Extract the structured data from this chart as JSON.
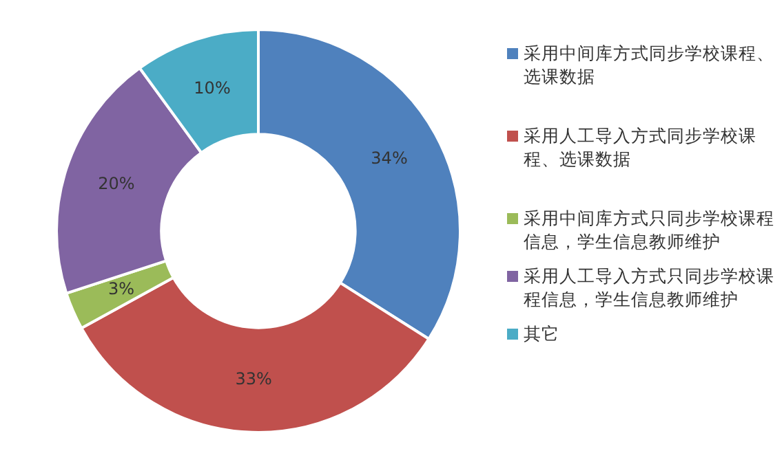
{
  "chart_data": {
    "type": "donut",
    "categories": [
      "采用中间库方式同步学校课程、选课数据",
      "采用人工导入方式同步学校课程、选课数据",
      "采用中间库方式只同步学校课程信息，学生信息教师维护",
      "采用人工导入方式只同步学校课程信息，学生信息教师维护",
      "其它"
    ],
    "values": [
      34,
      33,
      3,
      20,
      10
    ],
    "colors": [
      "#4f81bd",
      "#c0504d",
      "#9bbb59",
      "#8064a2",
      "#4bacc6"
    ],
    "value_labels": [
      "34%",
      "33%",
      "3%",
      "20%",
      "10%"
    ],
    "legend": "right"
  }
}
